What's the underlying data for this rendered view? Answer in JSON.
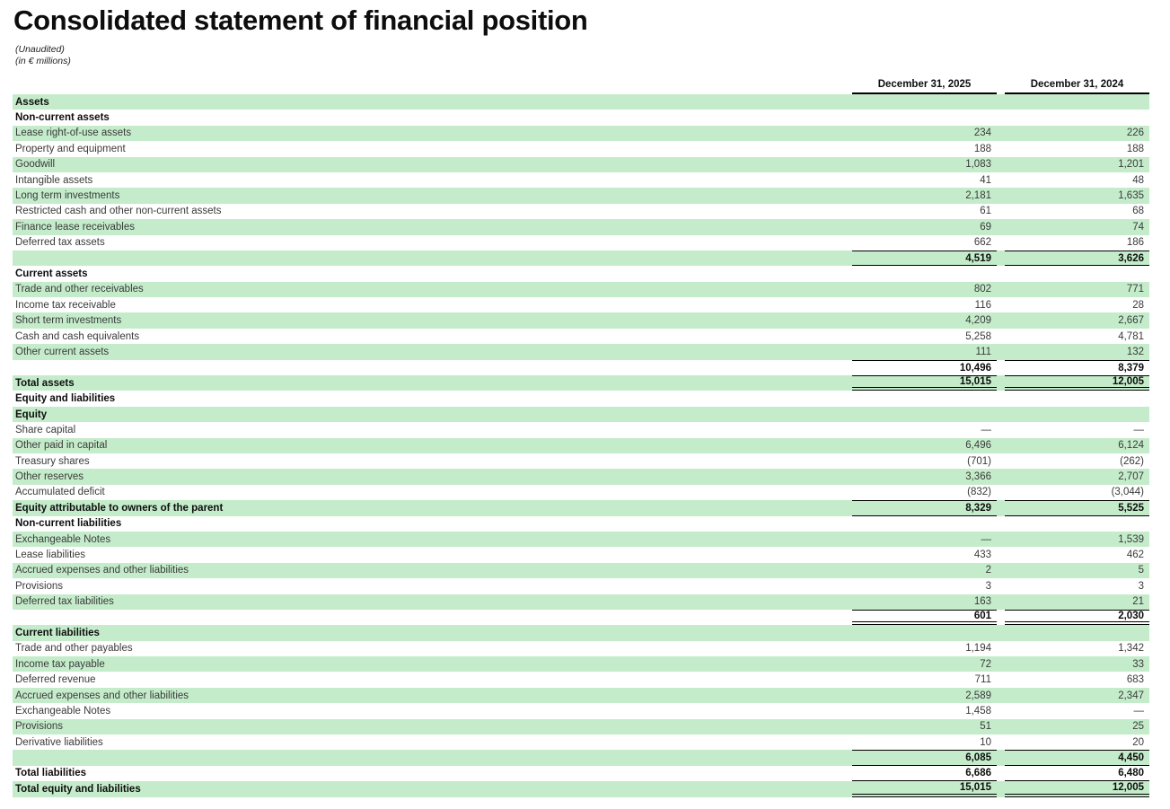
{
  "title": "Consolidated statement of financial position",
  "subtitles": {
    "line1": "(Unaudited)",
    "line2": "(in € millions)"
  },
  "columns": {
    "col2025": "December 31, 2025",
    "col2024": "December 31, 2024"
  },
  "rows": [
    {
      "label": "Assets",
      "bold": true,
      "v2025": "",
      "v2024": "",
      "rule": ""
    },
    {
      "label": "Non-current assets",
      "bold": true,
      "v2025": "",
      "v2024": "",
      "rule": ""
    },
    {
      "label": "Lease right-of-use assets",
      "bold": false,
      "v2025": "234",
      "v2024": "226",
      "rule": ""
    },
    {
      "label": "Property and equipment",
      "bold": false,
      "v2025": "188",
      "v2024": "188",
      "rule": ""
    },
    {
      "label": "Goodwill",
      "bold": false,
      "v2025": "1,083",
      "v2024": "1,201",
      "rule": ""
    },
    {
      "label": "Intangible assets",
      "bold": false,
      "v2025": "41",
      "v2024": "48",
      "rule": ""
    },
    {
      "label": "Long term investments",
      "bold": false,
      "v2025": "2,181",
      "v2024": "1,635",
      "rule": ""
    },
    {
      "label": "Restricted cash and other non-current assets",
      "bold": false,
      "v2025": "61",
      "v2024": "68",
      "rule": ""
    },
    {
      "label": "Finance lease receivables",
      "bold": false,
      "v2025": "69",
      "v2024": "74",
      "rule": ""
    },
    {
      "label": "Deferred tax assets",
      "bold": false,
      "v2025": "662",
      "v2024": "186",
      "rule": ""
    },
    {
      "label": "",
      "bold": true,
      "v2025": "4,519",
      "v2024": "3,626",
      "rule": "t b"
    },
    {
      "label": "Current assets",
      "bold": true,
      "v2025": "",
      "v2024": "",
      "rule": ""
    },
    {
      "label": "Trade and other receivables",
      "bold": false,
      "v2025": "802",
      "v2024": "771",
      "rule": ""
    },
    {
      "label": "Income tax receivable",
      "bold": false,
      "v2025": "116",
      "v2024": "28",
      "rule": ""
    },
    {
      "label": "Short term investments",
      "bold": false,
      "v2025": "4,209",
      "v2024": "2,667",
      "rule": ""
    },
    {
      "label": "Cash and cash equivalents",
      "bold": false,
      "v2025": "5,258",
      "v2024": "4,781",
      "rule": ""
    },
    {
      "label": "Other current assets",
      "bold": false,
      "v2025": "111",
      "v2024": "132",
      "rule": ""
    },
    {
      "label": "",
      "bold": true,
      "v2025": "10,496",
      "v2024": "8,379",
      "rule": "t"
    },
    {
      "label": "Total assets",
      "bold": true,
      "v2025": "15,015",
      "v2024": "12,005",
      "rule": "t db"
    },
    {
      "label": "Equity and liabilities",
      "bold": true,
      "v2025": "",
      "v2024": "",
      "rule": ""
    },
    {
      "label": "Equity",
      "bold": true,
      "v2025": "",
      "v2024": "",
      "rule": ""
    },
    {
      "label": "Share capital",
      "bold": false,
      "v2025": "—",
      "v2024": "—",
      "rule": ""
    },
    {
      "label": "Other paid in capital",
      "bold": false,
      "v2025": "6,496",
      "v2024": "6,124",
      "rule": ""
    },
    {
      "label": "Treasury shares",
      "bold": false,
      "v2025": "(701)",
      "v2024": "(262)",
      "rule": ""
    },
    {
      "label": "Other reserves",
      "bold": false,
      "v2025": "3,366",
      "v2024": "2,707",
      "rule": ""
    },
    {
      "label": "Accumulated deficit",
      "bold": false,
      "v2025": "(832)",
      "v2024": "(3,044)",
      "rule": ""
    },
    {
      "label": "Equity attributable to owners of the parent",
      "bold": true,
      "v2025": "8,329",
      "v2024": "5,525",
      "rule": "t b"
    },
    {
      "label": "Non-current liabilities",
      "bold": true,
      "v2025": "",
      "v2024": "",
      "rule": ""
    },
    {
      "label": "Exchangeable Notes",
      "bold": false,
      "v2025": "—",
      "v2024": "1,539",
      "rule": ""
    },
    {
      "label": "Lease liabilities",
      "bold": false,
      "v2025": "433",
      "v2024": "462",
      "rule": ""
    },
    {
      "label": "Accrued expenses and other liabilities",
      "bold": false,
      "v2025": "2",
      "v2024": "5",
      "rule": ""
    },
    {
      "label": "Provisions",
      "bold": false,
      "v2025": "3",
      "v2024": "3",
      "rule": ""
    },
    {
      "label": "Deferred tax liabilities",
      "bold": false,
      "v2025": "163",
      "v2024": "21",
      "rule": ""
    },
    {
      "label": "",
      "bold": true,
      "v2025": "601",
      "v2024": "2,030",
      "rule": "t db"
    },
    {
      "label": "Current liabilities",
      "bold": true,
      "v2025": "",
      "v2024": "",
      "rule": ""
    },
    {
      "label": "Trade and other payables",
      "bold": false,
      "v2025": "1,194",
      "v2024": "1,342",
      "rule": ""
    },
    {
      "label": "Income tax payable",
      "bold": false,
      "v2025": "72",
      "v2024": "33",
      "rule": ""
    },
    {
      "label": "Deferred revenue",
      "bold": false,
      "v2025": "711",
      "v2024": "683",
      "rule": ""
    },
    {
      "label": "Accrued expenses and other liabilities",
      "bold": false,
      "v2025": "2,589",
      "v2024": "2,347",
      "rule": ""
    },
    {
      "label": "Exchangeable Notes",
      "bold": false,
      "v2025": "1,458",
      "v2024": "—",
      "rule": ""
    },
    {
      "label": "Provisions",
      "bold": false,
      "v2025": "51",
      "v2024": "25",
      "rule": ""
    },
    {
      "label": "Derivative liabilities",
      "bold": false,
      "v2025": "10",
      "v2024": "20",
      "rule": ""
    },
    {
      "label": "",
      "bold": true,
      "v2025": "6,085",
      "v2024": "4,450",
      "rule": "t b"
    },
    {
      "label": "Total liabilities",
      "bold": true,
      "v2025": "6,686",
      "v2024": "6,480",
      "rule": "b"
    },
    {
      "label": "Total equity and liabilities",
      "bold": true,
      "v2025": "15,015",
      "v2024": "12,005",
      "rule": "db"
    }
  ]
}
